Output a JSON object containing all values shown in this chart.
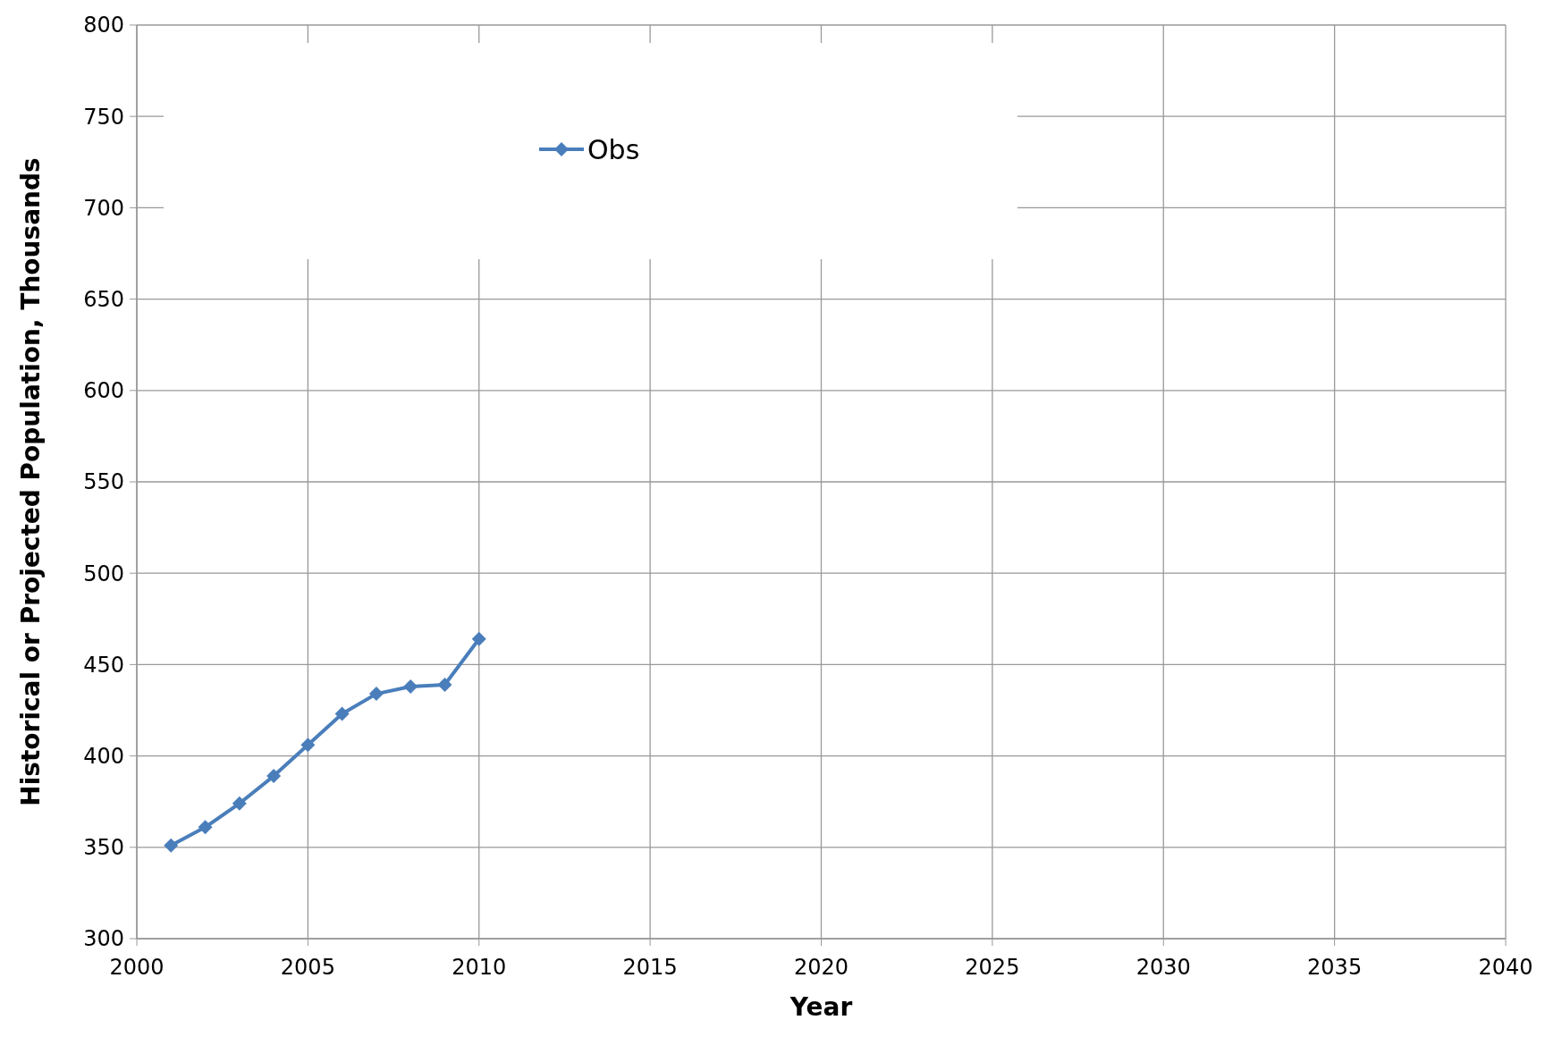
{
  "chart_data": {
    "type": "line",
    "xlabel": "Year",
    "ylabel": "Historical or Projected Population, Thousands",
    "x": [
      2001,
      2002,
      2003,
      2004,
      2005,
      2006,
      2007,
      2008,
      2009,
      2010
    ],
    "series": [
      {
        "name": "Obs",
        "color": "#4a7ebb",
        "values": [
          351,
          361,
          374,
          389,
          406,
          423,
          434,
          438,
          439,
          464
        ]
      }
    ],
    "xlim": [
      2000,
      2040
    ],
    "xticks": [
      2000,
      2005,
      2010,
      2015,
      2020,
      2025,
      2030,
      2035,
      2040
    ],
    "ylim": [
      300,
      800
    ],
    "yticks": [
      300,
      350,
      400,
      450,
      500,
      550,
      600,
      650,
      700,
      750,
      800
    ],
    "grid": true,
    "legend": "top left",
    "marker": "diamond",
    "line_style": "solid"
  }
}
